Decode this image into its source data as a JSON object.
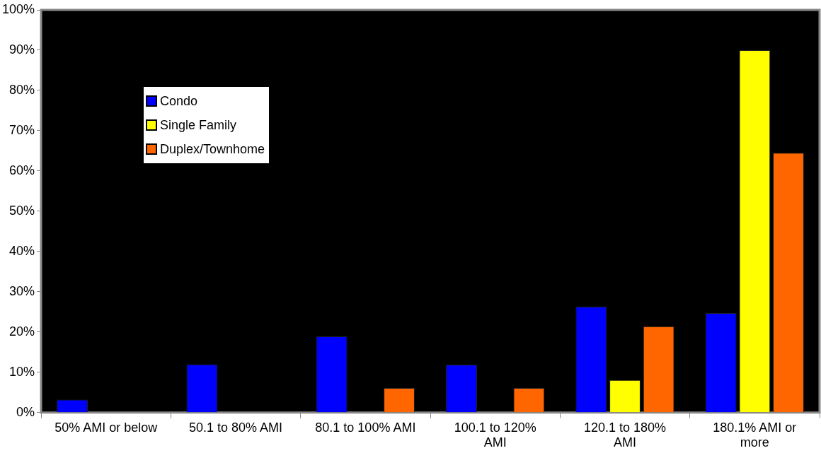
{
  "chart_data": {
    "type": "bar",
    "categories": [
      "50% AMI or below",
      "50.1 to 80% AMI",
      "80.1 to 100% AMI",
      "100.1 to 120% AMI",
      "120.1 to 180% AMI",
      "180.1% AMI or more"
    ],
    "series": [
      {
        "name": "Condo",
        "color": "#0000ff",
        "values": [
          3.2,
          12,
          18.9,
          11.9,
          26.3,
          24.7
        ]
      },
      {
        "name": "Single Family",
        "color": "#ffff00",
        "values": [
          0,
          0,
          0,
          0,
          8.1,
          90
        ]
      },
      {
        "name": "Duplex/Townhome",
        "color": "#ff6600",
        "values": [
          0,
          0,
          6.1,
          6.1,
          21.4,
          64.5
        ]
      }
    ],
    "ylim": [
      0,
      100
    ],
    "yticks": [
      {
        "value": 0,
        "label": "0%"
      },
      {
        "value": 10,
        "label": "10%"
      },
      {
        "value": 20,
        "label": "20%"
      },
      {
        "value": 30,
        "label": "30%"
      },
      {
        "value": 40,
        "label": "40%"
      },
      {
        "value": 50,
        "label": "50%"
      },
      {
        "value": 60,
        "label": "60%"
      },
      {
        "value": 70,
        "label": "70%"
      },
      {
        "value": 80,
        "label": "80%"
      },
      {
        "value": 90,
        "label": "90%"
      },
      {
        "value": 100,
        "label": "100%"
      }
    ],
    "grid": false,
    "legend": "top left"
  }
}
